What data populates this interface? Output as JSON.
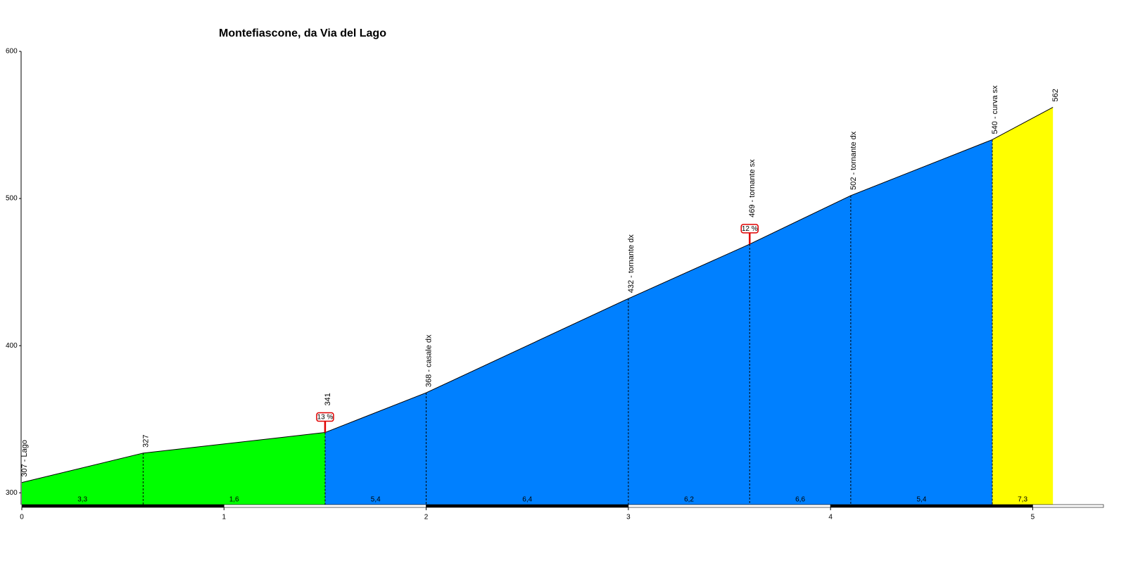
{
  "chart_data": {
    "type": "profile",
    "title": "Montefiascone, da Via del Lago",
    "x": [
      0,
      0.6,
      1.5,
      2.0,
      3.0,
      3.6,
      4.1,
      4.8,
      5.1
    ],
    "series": [
      {
        "values": [
          307,
          327,
          341,
          368,
          432,
          469,
          502,
          540,
          562
        ],
        "color": "#000000"
      }
    ],
    "point_labels": [
      "307 - Lago",
      "327",
      "341",
      "368 - casale dx",
      "432 - tornante dx",
      "469 - tornante sx",
      "502 - tornante dx",
      "540 - curva sx",
      "562"
    ],
    "segment_grades": [
      3.3,
      1.6,
      5.4,
      6.4,
      6.2,
      6.6,
      5.4,
      7.3
    ],
    "segment_grade_labels": [
      "3,3",
      "1,6",
      "5,4",
      "6,4",
      "6,2",
      "6,6",
      "5,4",
      "7,3"
    ],
    "segment_colors": [
      "#00ff00",
      "#00ff00",
      "#0080ff",
      "#0080ff",
      "#0080ff",
      "#0080ff",
      "#0080ff",
      "#ffff00"
    ],
    "max_grade_markers": [
      {
        "x": 1.5,
        "label": "13 %"
      },
      {
        "x": 3.6,
        "label": "12 %"
      }
    ],
    "xlim": [
      0,
      5.35
    ],
    "xticks": [
      0,
      1,
      2,
      3,
      4,
      5
    ],
    "ylim": [
      292,
      600
    ],
    "yticks": [
      300,
      400,
      500,
      600
    ]
  }
}
